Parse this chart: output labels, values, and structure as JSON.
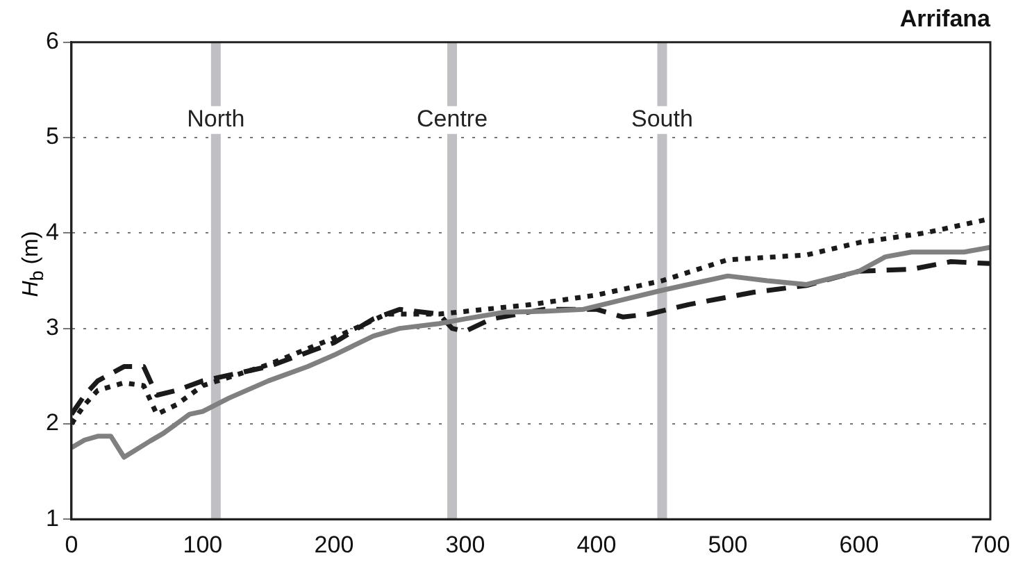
{
  "chart_data": {
    "type": "line",
    "title": "Arrifana",
    "ylabel": "H$_{b}$ (m)",
    "xlim": [
      0,
      700
    ],
    "xticks": [
      0,
      100,
      200,
      300,
      400,
      500,
      600,
      700
    ],
    "ylim": [
      1,
      6
    ],
    "yticks": [
      1,
      2,
      3,
      4,
      5,
      6
    ],
    "grid": "y",
    "legend": false,
    "marker": "none",
    "series": [
      {
        "color": "#808080",
        "line_style": "solid",
        "x": [
          0,
          10,
          20,
          30,
          40,
          60,
          70,
          90,
          100,
          120,
          150,
          180,
          200,
          230,
          250,
          280,
          300,
          330,
          360,
          390,
          420,
          450,
          500,
          530,
          560,
          600,
          620,
          640,
          660,
          680,
          700
        ],
        "values": [
          1.75,
          1.83,
          1.87,
          1.87,
          1.65,
          1.82,
          1.9,
          2.1,
          2.13,
          2.27,
          2.45,
          2.6,
          2.72,
          2.92,
          3.0,
          3.05,
          3.1,
          3.17,
          3.18,
          3.2,
          3.3,
          3.4,
          3.55,
          3.5,
          3.46,
          3.6,
          3.75,
          3.8,
          3.8,
          3.8,
          3.85
        ]
      },
      {
        "color": "#1a1a1a",
        "line_style": "dashed",
        "x": [
          0,
          10,
          20,
          40,
          55,
          65,
          80,
          100,
          150,
          200,
          230,
          250,
          280,
          290,
          300,
          320,
          360,
          400,
          420,
          440,
          470,
          520,
          560,
          600,
          640,
          670,
          700
        ],
        "values": [
          2.1,
          2.3,
          2.45,
          2.6,
          2.6,
          2.3,
          2.35,
          2.45,
          2.6,
          2.85,
          3.1,
          3.2,
          3.15,
          3.0,
          2.97,
          3.1,
          3.2,
          3.2,
          3.12,
          3.15,
          3.25,
          3.38,
          3.45,
          3.6,
          3.62,
          3.7,
          3.68
        ]
      },
      {
        "color": "#1a1a1a",
        "line_style": "dotted",
        "x": [
          0,
          10,
          20,
          40,
          55,
          65,
          80,
          100,
          150,
          200,
          240,
          280,
          350,
          400,
          450,
          500,
          560,
          600,
          650,
          700
        ],
        "values": [
          2.0,
          2.2,
          2.35,
          2.43,
          2.4,
          2.1,
          2.2,
          2.4,
          2.62,
          2.9,
          3.15,
          3.15,
          3.25,
          3.35,
          3.5,
          3.72,
          3.77,
          3.9,
          4.0,
          4.15
        ]
      }
    ],
    "ref_lines": [
      {
        "axis": "x",
        "value": 110,
        "label": "North",
        "color": "#c0c0c4"
      },
      {
        "axis": "x",
        "value": 290,
        "label": "Centre",
        "color": "#c0c0c4"
      },
      {
        "axis": "x",
        "value": 450,
        "label": "South",
        "color": "#c0c0c4"
      }
    ]
  }
}
